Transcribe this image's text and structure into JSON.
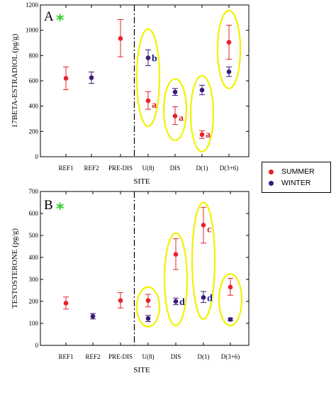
{
  "legend": {
    "summer_label": "SUMMER",
    "winter_label": "WINTER"
  },
  "colors": {
    "summer": "#e8202a",
    "winter": "#3a1a7a",
    "circle": "#f2f200",
    "star": "#2ecc2e",
    "summer_letter": "#d8202a",
    "winter_letter": "#1a1a8a"
  },
  "chart_data": [
    {
      "type": "scatter",
      "panel_label": "A",
      "panel_mark": "*",
      "ylabel": "17BETA-ESTRADIOL (pg/g)",
      "xlabel": "SITE",
      "ylim": [
        0,
        1200
      ],
      "yticks": [
        0,
        200,
        400,
        600,
        800,
        1000,
        1200
      ],
      "categories": [
        "REF1",
        "REF2",
        "PRE-DIS",
        "U(8)",
        "DIS",
        "D(1)",
        "D(3+6)"
      ],
      "divider_after": "PRE-DIS",
      "series": [
        {
          "name": "SUMMER",
          "points": [
            {
              "x": "REF1",
              "y": 620,
              "err_low": 530,
              "err_high": 710
            },
            {
              "x": "PRE-DIS",
              "y": 935,
              "err_low": 790,
              "err_high": 1085
            },
            {
              "x": "U(8)",
              "y": 443,
              "err_low": 375,
              "err_high": 515
            },
            {
              "x": "DIS",
              "y": 322,
              "err_low": 255,
              "err_high": 395
            },
            {
              "x": "D(1)",
              "y": 175,
              "err_low": 145,
              "err_high": 205
            },
            {
              "x": "D(3+6)",
              "y": 905,
              "err_low": 770,
              "err_high": 1040
            }
          ]
        },
        {
          "name": "WINTER",
          "points": [
            {
              "x": "REF2",
              "y": 625,
              "err_low": 580,
              "err_high": 670
            },
            {
              "x": "U(8)",
              "y": 782,
              "err_low": 720,
              "err_high": 845
            },
            {
              "x": "DIS",
              "y": 512,
              "err_low": 485,
              "err_high": 540
            },
            {
              "x": "D(1)",
              "y": 527,
              "err_low": 490,
              "err_high": 565
            },
            {
              "x": "D(3+6)",
              "y": 672,
              "err_low": 635,
              "err_high": 710
            }
          ]
        }
      ],
      "annotations": [
        {
          "text": "b",
          "x": "U(8)",
          "y": 782,
          "series": "WINTER"
        },
        {
          "text": "a",
          "x": "U(8)",
          "y": 415,
          "series": "SUMMER"
        },
        {
          "text": "a",
          "x": "DIS",
          "y": 310,
          "series": "SUMMER"
        },
        {
          "text": "a",
          "x": "D(1)",
          "y": 180,
          "series": "SUMMER"
        }
      ],
      "highlight_ellipses": [
        {
          "x": "U(8)",
          "y_range": [
            240,
            1010
          ]
        },
        {
          "x": "DIS",
          "y_range": [
            130,
            615
          ]
        },
        {
          "x": "D(1)",
          "y_range": [
            40,
            640
          ]
        },
        {
          "x": "D(3+6)",
          "y_range": [
            540,
            1155
          ]
        }
      ]
    },
    {
      "type": "scatter",
      "panel_label": "B",
      "panel_mark": "*",
      "ylabel": "TESTOSTERONE (pg/g)",
      "xlabel": "SITE",
      "ylim": [
        0,
        700
      ],
      "yticks": [
        0,
        100,
        200,
        300,
        400,
        500,
        600,
        700
      ],
      "categories": [
        "REF1",
        "REF2",
        "PRE-DIS",
        "U(8)",
        "DIS",
        "D(1)",
        "D(3+6)"
      ],
      "divider_after": "PRE-DIS",
      "series": [
        {
          "name": "SUMMER",
          "points": [
            {
              "x": "REF1",
              "y": 192,
              "err_low": 165,
              "err_high": 220
            },
            {
              "x": "PRE-DIS",
              "y": 204,
              "err_low": 170,
              "err_high": 240
            },
            {
              "x": "U(8)",
              "y": 204,
              "err_low": 175,
              "err_high": 232
            },
            {
              "x": "DIS",
              "y": 414,
              "err_low": 345,
              "err_high": 485
            },
            {
              "x": "D(1)",
              "y": 547,
              "err_low": 465,
              "err_high": 628
            },
            {
              "x": "D(3+6)",
              "y": 265,
              "err_low": 228,
              "err_high": 305
            }
          ]
        },
        {
          "name": "WINTER",
          "points": [
            {
              "x": "REF2",
              "y": 132,
              "err_low": 120,
              "err_high": 145
            },
            {
              "x": "U(8)",
              "y": 122,
              "err_low": 108,
              "err_high": 136
            },
            {
              "x": "DIS",
              "y": 200,
              "err_low": 185,
              "err_high": 215
            },
            {
              "x": "D(1)",
              "y": 218,
              "err_low": 195,
              "err_high": 245
            },
            {
              "x": "D(3+6)",
              "y": 118,
              "err_low": 112,
              "err_high": 124
            }
          ]
        }
      ],
      "annotations": [
        {
          "text": "d",
          "x": "DIS",
          "y": 200,
          "series": "WINTER"
        },
        {
          "text": "c",
          "x": "D(1)",
          "y": 530,
          "series": "SUMMER"
        },
        {
          "text": "d",
          "x": "D(1)",
          "y": 218,
          "series": "WINTER"
        }
      ],
      "highlight_ellipses": [
        {
          "x": "U(8)",
          "y_range": [
            85,
            265
          ]
        },
        {
          "x": "DIS",
          "y_range": [
            90,
            510
          ]
        },
        {
          "x": "D(1)",
          "y_range": [
            120,
            650
          ]
        },
        {
          "x": "D(3+6)",
          "y_range": [
            90,
            325
          ]
        }
      ]
    }
  ]
}
